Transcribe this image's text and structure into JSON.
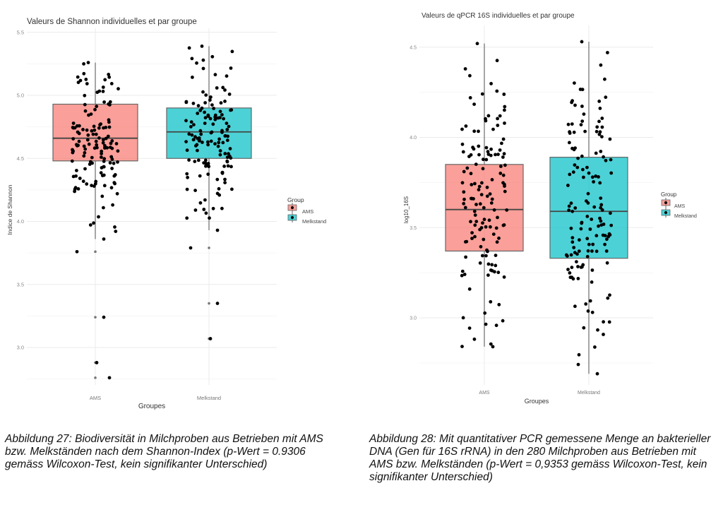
{
  "chart_data": [
    {
      "type": "box",
      "title": "Valeurs de Shannon individuelles et par groupe",
      "xlabel": "Groupes",
      "ylabel": "Indice de Shannon",
      "categories": [
        "AMS",
        "Melkstand"
      ],
      "ylim": [
        2.7,
        5.5
      ],
      "yticks": [
        3.0,
        3.5,
        4.0,
        4.5,
        5.0,
        5.5
      ],
      "ytick_labels": [
        "3.0",
        "3.5",
        "4.0",
        "4.5",
        "5.0",
        "5.5"
      ],
      "grid": true,
      "legend": {
        "title": "Group",
        "entries": [
          "AMS",
          "Melkstand"
        ],
        "placement": "right"
      },
      "colors": {
        "AMS": "#F8766D",
        "Melkstand": "#00BFC4"
      },
      "series": [
        {
          "name": "AMS",
          "q1": 4.48,
          "median": 4.66,
          "q3": 4.93,
          "whisker_low": 3.86,
          "whisker_high": 5.26,
          "outliers": [
            3.76,
            3.24,
            2.88,
            2.76
          ],
          "n_points": 140
        },
        {
          "name": "Melkstand",
          "q1": 4.5,
          "median": 4.71,
          "q3": 4.9,
          "whisker_low": 3.93,
          "whisker_high": 5.39,
          "outliers": [
            3.79,
            3.35,
            3.07
          ],
          "n_points": 140
        }
      ]
    },
    {
      "type": "box",
      "title": "Valeurs de qPCR 16S individuelles et par groupe",
      "xlabel": "Groupes",
      "ylabel": "log10_16S",
      "categories": [
        "AMS",
        "Melkstand"
      ],
      "ylim": [
        2.65,
        4.55
      ],
      "yticks": [
        3.0,
        3.5,
        4.0,
        4.5
      ],
      "ytick_labels": [
        "3.0",
        "3.5",
        "4.0",
        "4.5"
      ],
      "grid": true,
      "legend": {
        "title": "Group",
        "entries": [
          "AMS",
          "Melkstand"
        ],
        "placement": "right"
      },
      "colors": {
        "AMS": "#F8766D",
        "Melkstand": "#00BFC4"
      },
      "series": [
        {
          "name": "AMS",
          "q1": 3.37,
          "median": 3.6,
          "q3": 3.85,
          "whisker_low": 2.84,
          "whisker_high": 4.52,
          "outliers": [],
          "n_points": 140
        },
        {
          "name": "Melkstand",
          "q1": 3.33,
          "median": 3.59,
          "q3": 3.89,
          "whisker_low": 2.69,
          "whisker_high": 4.53,
          "outliers": [],
          "n_points": 140
        }
      ]
    }
  ],
  "captions": {
    "left": "Abbildung 27: Biodiversität in Milchproben aus Betrieben mit AMS bzw. Melkständen nach dem Shannon-Index (p-Wert = 0.9306 gemäss Wilcoxon-Test, kein signifikanter Unterschied)",
    "right": "Abbildung 28: Mit quantitativer PCR gemessene Menge an bakterieller DNA (Gen für 16S rRNA) in den 280 Milchproben aus Betrieben mit AMS bzw. Melkständen (p-Wert = 0,9353 gemäss Wilcoxon-Test, kein signifikanter Unterschied)"
  }
}
